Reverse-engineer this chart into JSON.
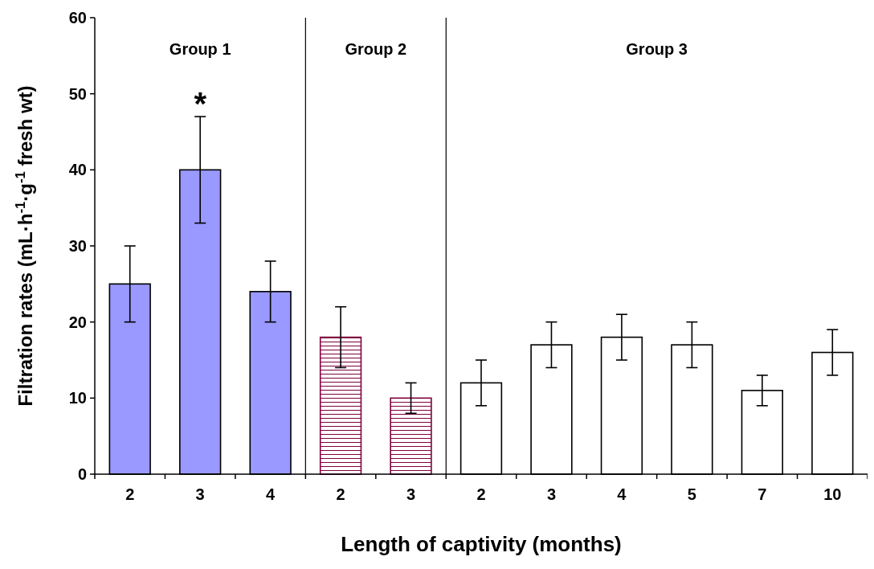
{
  "chart_data": {
    "type": "bar",
    "xlabel": "Length of captivity (months)",
    "ylabel": "Filtration rates (mL·h$^{-1}$·g$^{-1}$ fresh wt)",
    "categories": [
      "2",
      "3",
      "4",
      "2",
      "3",
      "2",
      "3",
      "4",
      "5",
      "7",
      "10"
    ],
    "values": [
      25,
      40,
      24,
      18,
      10,
      12,
      17,
      18,
      17,
      11,
      16
    ],
    "errors": [
      [
        20,
        30
      ],
      [
        33,
        47
      ],
      [
        20,
        28
      ],
      [
        14,
        22
      ],
      [
        8,
        12
      ],
      [
        9,
        15
      ],
      [
        14,
        20
      ],
      [
        15,
        21
      ],
      [
        14,
        20
      ],
      [
        9,
        13
      ],
      [
        13,
        19
      ]
    ],
    "colors": [
      "#9999ff",
      "#9999ff",
      "#9999ff",
      "#800040",
      "#800040",
      "#ffffff",
      "#ffffff",
      "#ffffff",
      "#ffffff",
      "#ffffff",
      "#ffffff"
    ],
    "ylim": [
      0,
      60
    ],
    "yticks": [
      0,
      10,
      20,
      30,
      40,
      50,
      60
    ],
    "annotations": [
      "Group 1",
      "Group 2",
      "Group 3",
      {
        "text": "*",
        "x": "3",
        "y": 47
      }
    ]
  }
}
